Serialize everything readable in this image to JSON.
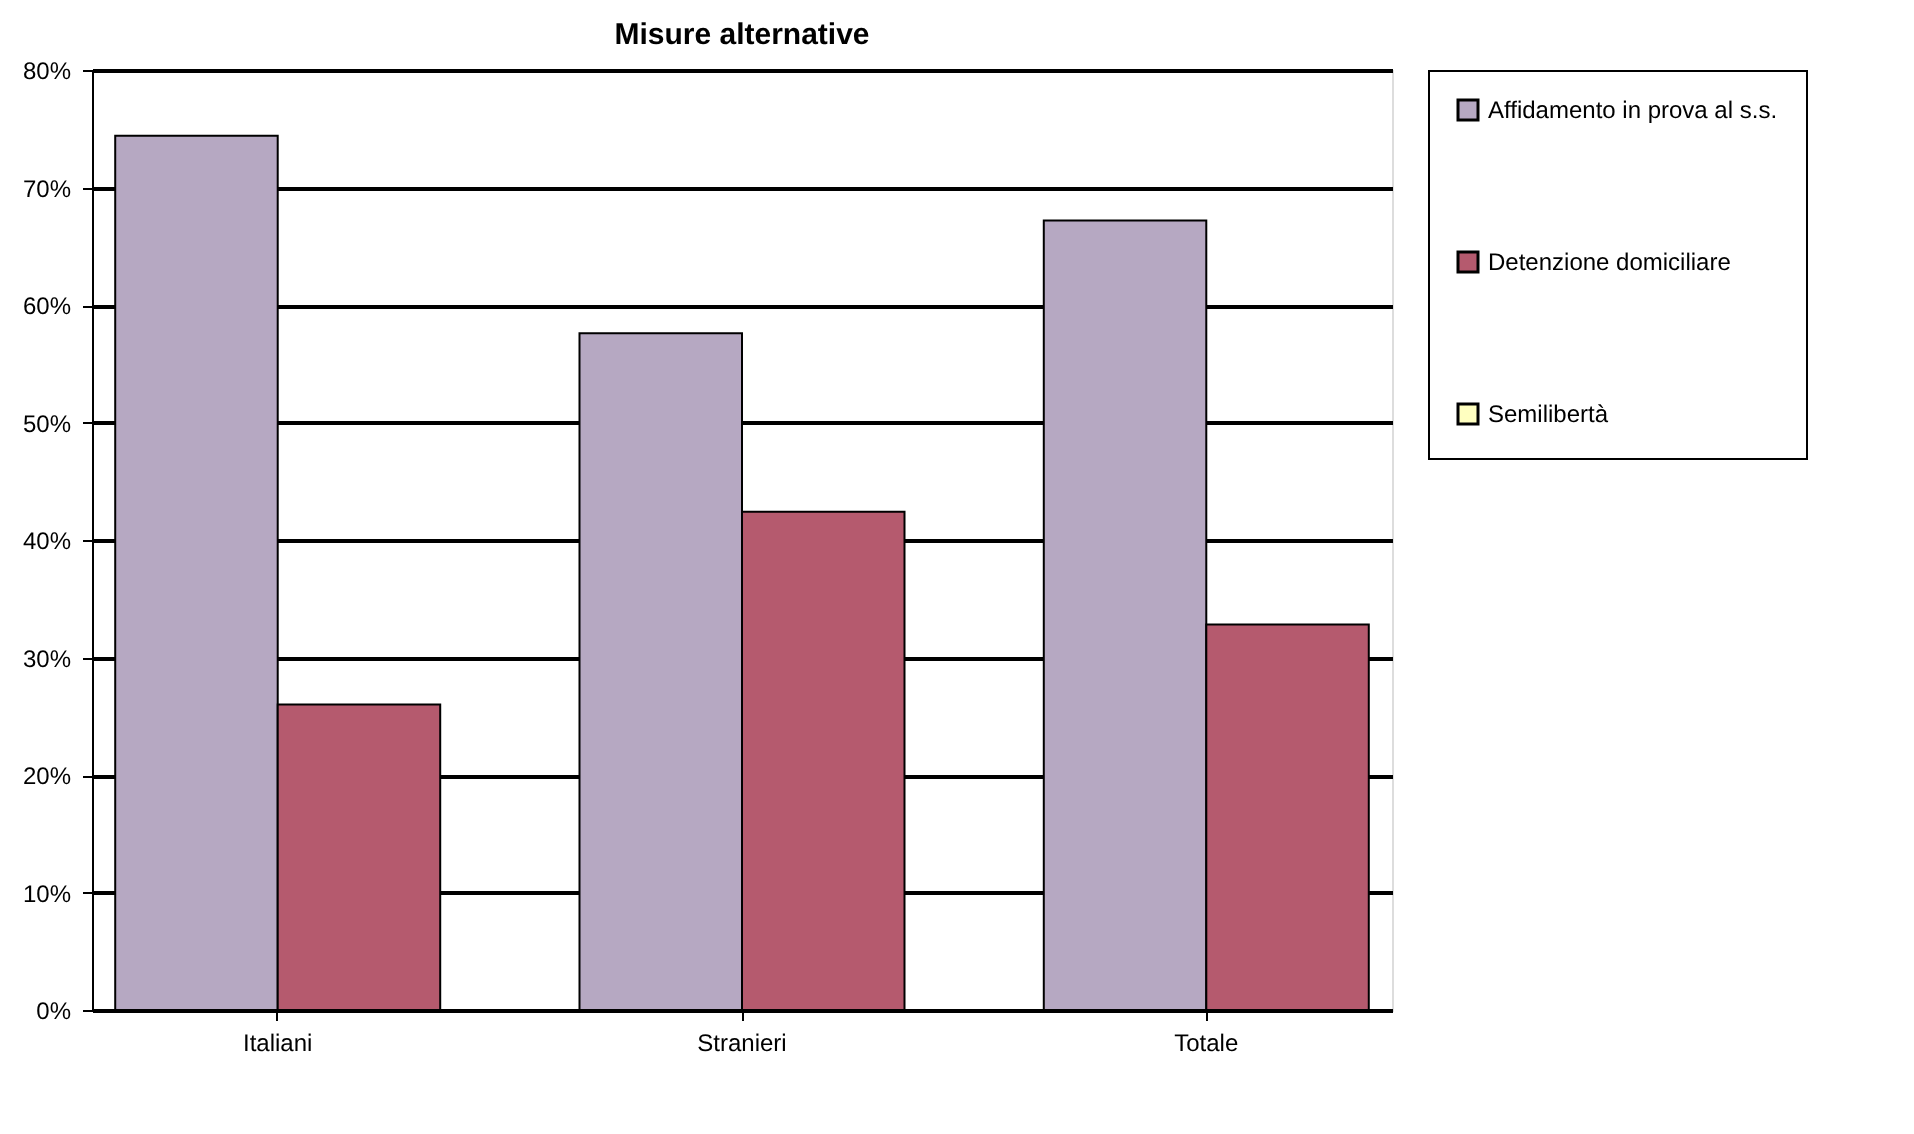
{
  "chart_data": {
    "type": "bar",
    "title": "Misure alternative",
    "categories": [
      "Italiani",
      "Stranieri",
      "Totale"
    ],
    "series": [
      {
        "name": "Affidamento in prova al s.s.",
        "color": "#b6a8c2",
        "values": [
          74.4,
          57.6,
          67.2
        ]
      },
      {
        "name": "Detenzione domiciliare",
        "color": "#b55a6e",
        "values": [
          26.0,
          42.4,
          32.8
        ]
      },
      {
        "name": "Semilibertà",
        "color": "#ffffc0",
        "values": [
          null,
          null,
          null
        ]
      }
    ],
    "ylim": [
      0,
      80
    ],
    "yticks": [
      {
        "value": 0,
        "label": "0%"
      },
      {
        "value": 10,
        "label": "10%"
      },
      {
        "value": 20,
        "label": "20%"
      },
      {
        "value": 30,
        "label": "30%"
      },
      {
        "value": 40,
        "label": "40%"
      },
      {
        "value": 50,
        "label": "50%"
      },
      {
        "value": 60,
        "label": "60%"
      },
      {
        "value": 70,
        "label": "70%"
      },
      {
        "value": 80,
        "label": "80%"
      }
    ],
    "grid": "y",
    "legend": "right"
  }
}
